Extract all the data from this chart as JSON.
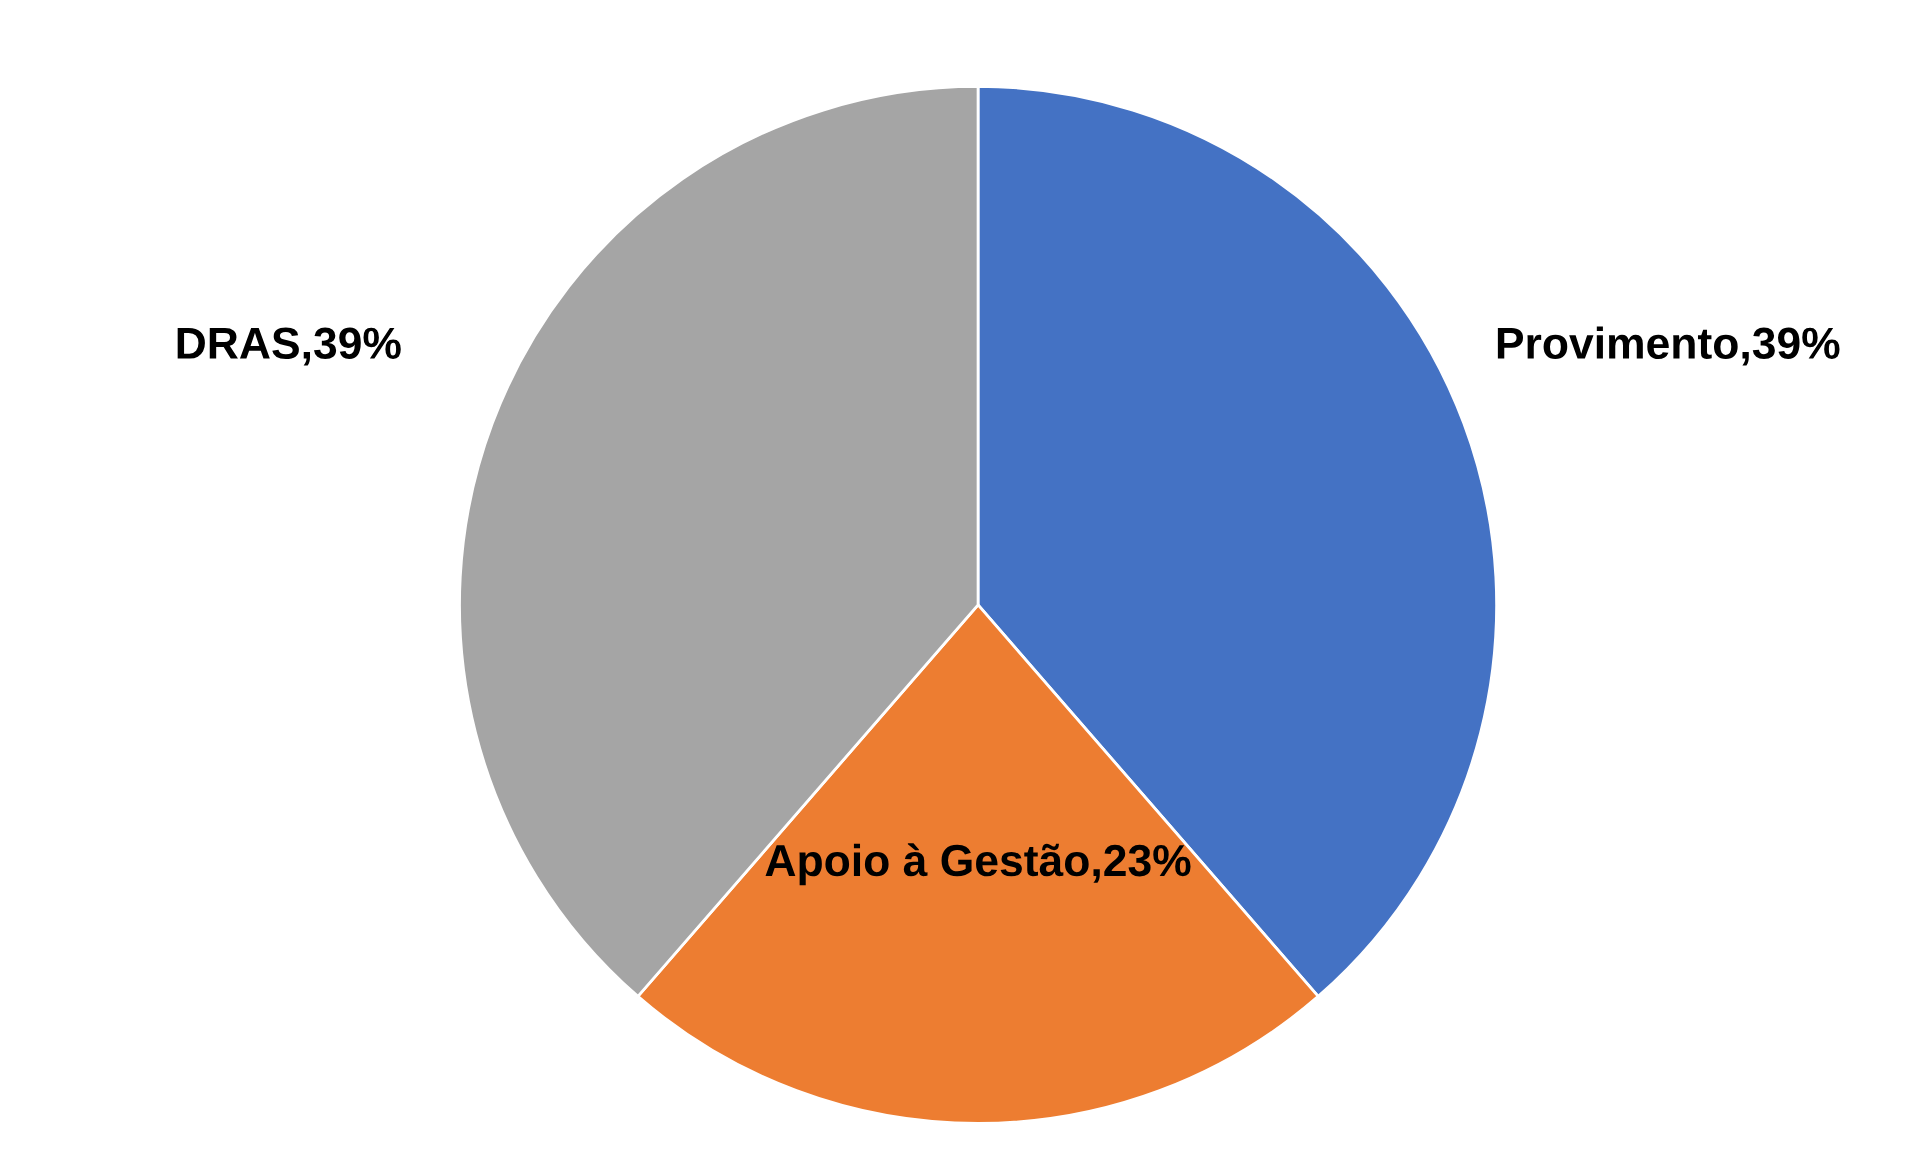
{
  "chart_data": {
    "type": "pie",
    "categories": [
      "Provimento",
      "Apoio à Gestão",
      "DRAS"
    ],
    "values": [
      39,
      23,
      39
    ],
    "value_labels": [
      "39%",
      "23%",
      "39%"
    ],
    "colors": [
      "#4472c4",
      "#ed7d31",
      "#a5a5a5"
    ],
    "legend": false
  }
}
